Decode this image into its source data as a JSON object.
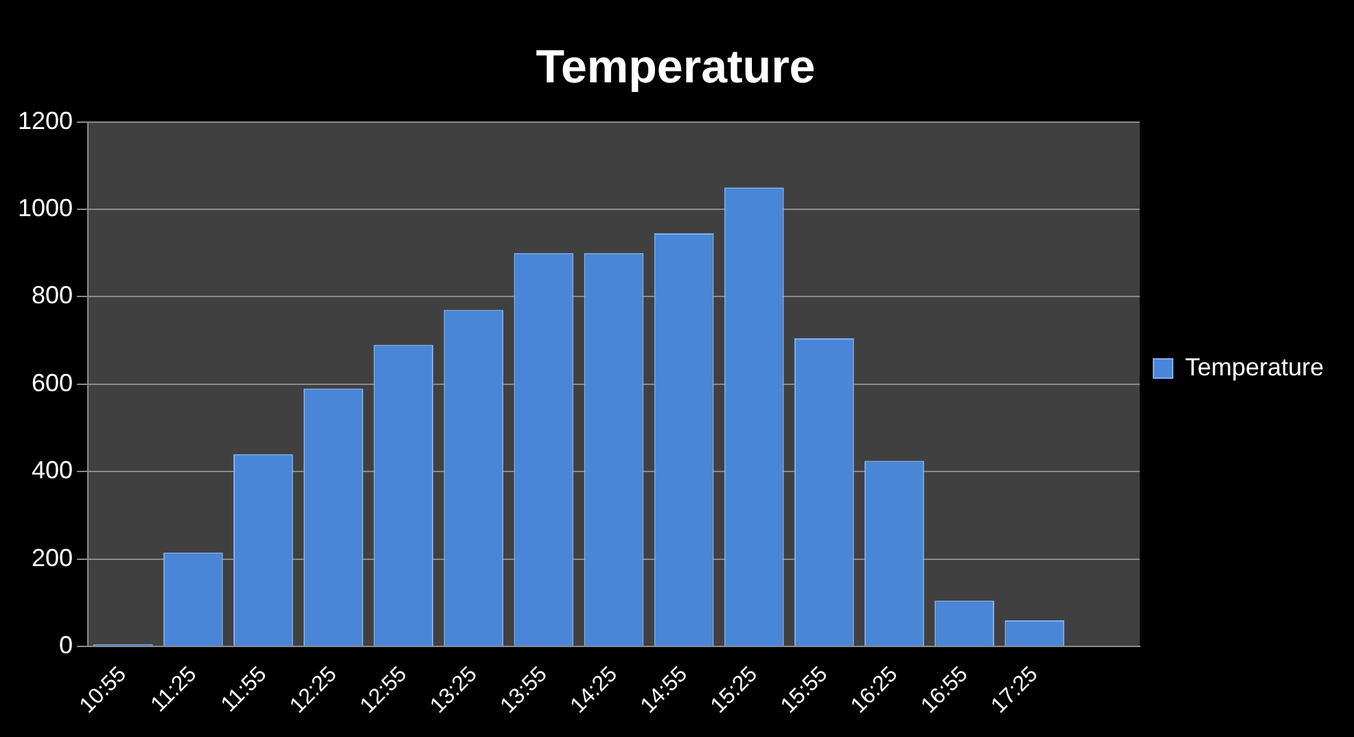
{
  "chart_data": {
    "type": "bar",
    "title": "Temperature",
    "categories": [
      "10:55",
      "11:25",
      "11:55",
      "12:25",
      "12:55",
      "13:25",
      "13:55",
      "14:25",
      "14:55",
      "15:25",
      "15:55",
      "16:25",
      "16:55",
      "17:25",
      null
    ],
    "series": [
      {
        "name": "Temperature",
        "color": "#4a86d8",
        "values": [
          5,
          215,
          440,
          590,
          690,
          770,
          900,
          900,
          945,
          1050,
          705,
          425,
          105,
          60,
          null
        ]
      }
    ],
    "ylim": [
      0,
      1200
    ],
    "yticks": [
      0,
      200,
      400,
      600,
      800,
      1000,
      1200
    ],
    "grid": "y",
    "legend": "right"
  }
}
